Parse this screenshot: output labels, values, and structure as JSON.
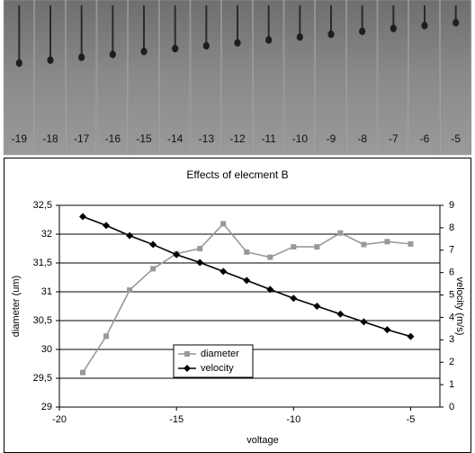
{
  "photo_strip": {
    "labels": [
      "-19",
      "-18",
      "-17",
      "-16",
      "-15",
      "-14",
      "-13",
      "-12",
      "-11",
      "-10",
      "-9",
      "-8",
      "-7",
      "-6",
      "-5"
    ]
  },
  "chart_data": {
    "type": "line",
    "title": "Effects of elecment B",
    "x_label": "voltage",
    "y_label": "diameter (um)",
    "y2_label": "velocity (m/s)",
    "x": [
      -19,
      -18,
      -17,
      -16,
      -15,
      -14,
      -13,
      -12,
      -11,
      -10,
      -9,
      -8,
      -7,
      -6,
      -5
    ],
    "xlim": [
      -20,
      -3.75
    ],
    "xticks": [
      -20,
      -15,
      -10,
      -5
    ],
    "ylim": [
      29,
      32.5
    ],
    "yticks": [
      29,
      {
        "value": 29.5,
        "label": "29,5"
      },
      30,
      {
        "value": 30.5,
        "label": "30,5"
      },
      31,
      {
        "value": 31.5,
        "label": "31,5"
      },
      32,
      {
        "value": 32.5,
        "label": "32,5"
      }
    ],
    "y2lim": [
      0,
      9
    ],
    "y2ticks": [
      0,
      1,
      2,
      3,
      4,
      5,
      6,
      7,
      8,
      9
    ],
    "grid": true,
    "legend": "center-left",
    "series": [
      {
        "name": "diameter",
        "color": "#999999",
        "marker": "square",
        "values": [
          29.6,
          30.23,
          31.03,
          31.4,
          31.66,
          31.75,
          32.18,
          31.69,
          31.6,
          31.78,
          31.78,
          32.02,
          31.82,
          31.87,
          31.83
        ]
      },
      {
        "name": "velocity",
        "color": "#000000",
        "marker": "diamond",
        "axis": "y2",
        "values": [
          8.5,
          8.1,
          7.65,
          7.25,
          6.8,
          6.45,
          6.05,
          5.65,
          5.25,
          4.85,
          4.5,
          4.15,
          3.8,
          3.45,
          3.15
        ]
      }
    ]
  }
}
